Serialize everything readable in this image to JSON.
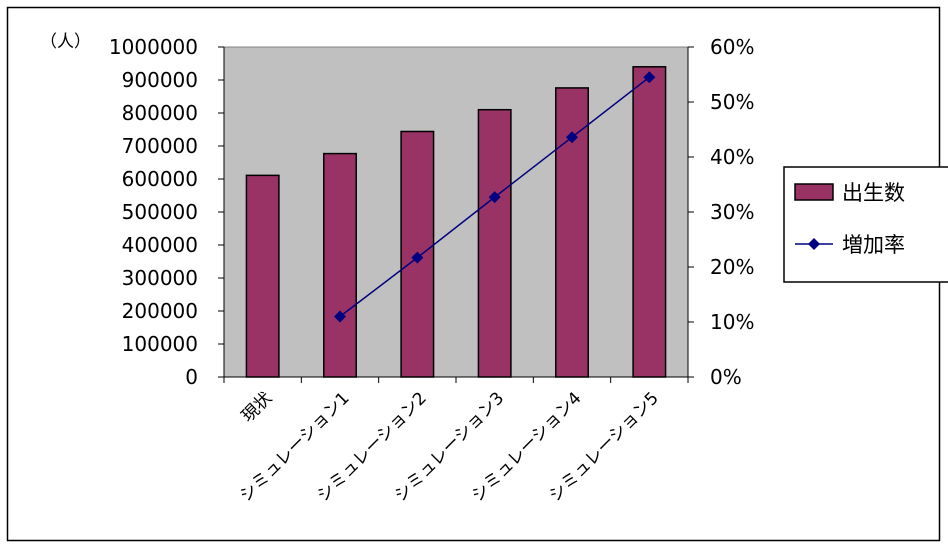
{
  "chart_data": {
    "type": "bar",
    "categories": [
      "現状",
      "シミュレーション1",
      "シミュレーション2",
      "シミュレーション3",
      "シミュレーション4",
      "シミュレーション5"
    ],
    "series": [
      {
        "name": "出生数",
        "type": "bar",
        "axis": "left",
        "color": "#993366",
        "values": [
          611000,
          677000,
          744000,
          810000,
          876000,
          940000
        ]
      },
      {
        "name": "増加率",
        "type": "line",
        "axis": "right",
        "color": "#000080",
        "values": [
          null,
          0.11,
          0.217,
          0.327,
          0.436,
          0.545
        ]
      }
    ],
    "ylabel_left": "（人）",
    "ylim_left": [
      0,
      1000000
    ],
    "yticks_left": [
      "0",
      "100000",
      "200000",
      "300000",
      "400000",
      "500000",
      "600000",
      "700000",
      "800000",
      "900000",
      "1000000"
    ],
    "ylim_right": [
      0,
      0.6
    ],
    "yticks_right": [
      "0%",
      "10%",
      "20%",
      "30%",
      "40%",
      "50%",
      "60%"
    ],
    "plot_background": "#c0c0c0",
    "grid": false,
    "legend": {
      "position": "right",
      "entries": [
        "出生数",
        "増加率"
      ]
    }
  }
}
